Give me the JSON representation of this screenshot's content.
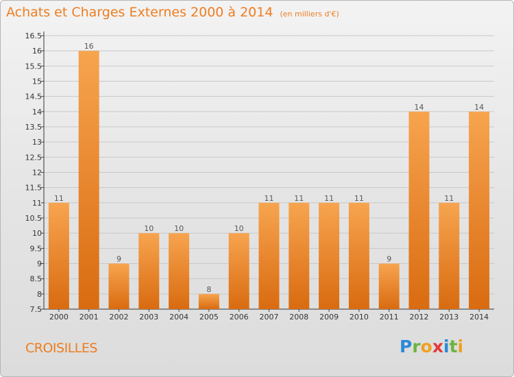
{
  "title": "Achats et Charges Externes 2000 à 2014",
  "unit": "(en milliers d'€)",
  "commune": "CROISILLES",
  "logo": {
    "letters": [
      {
        "ch": "P",
        "color": "#2b8ad6"
      },
      {
        "ch": "r",
        "color": "#6db33f"
      },
      {
        "ch": "o",
        "color": "#f0a020"
      },
      {
        "ch": "x",
        "color": "#e23a3a"
      },
      {
        "ch": "i",
        "color": "#2b8ad6"
      },
      {
        "ch": "t",
        "color": "#6db33f"
      },
      {
        "ch": "i",
        "color": "#f0a020"
      }
    ]
  },
  "colors": {
    "bar_top": "#f7a44f",
    "bar_bottom": "#d96b10",
    "title": "#ee7d20",
    "grid": "#c8c8c8"
  },
  "chart_data": {
    "type": "bar",
    "title": "Achats et Charges Externes 2000 à 2014",
    "subtitle": "(en milliers d'€)",
    "categories": [
      "2000",
      "2001",
      "2002",
      "2003",
      "2004",
      "2005",
      "2006",
      "2007",
      "2008",
      "2009",
      "2010",
      "2011",
      "2012",
      "2013",
      "2014"
    ],
    "values": [
      11,
      16,
      9,
      10,
      10,
      8,
      10,
      11,
      11,
      11,
      11,
      9,
      14,
      11,
      14
    ],
    "data_labels": [
      "11",
      "16",
      "9",
      "10",
      "10",
      "8",
      "10",
      "11",
      "11",
      "11",
      "11",
      "9",
      "14",
      "11",
      "14"
    ],
    "ylim": [
      7.5,
      16.5
    ],
    "yticks": [
      7.5,
      8,
      8.5,
      9,
      9.5,
      10,
      10.5,
      11,
      11.5,
      12,
      12.5,
      13,
      13.5,
      14,
      14.5,
      15,
      15.5,
      16,
      16.5
    ],
    "ytick_labels": [
      "7.5",
      "8",
      "8.5",
      "9",
      "9.5",
      "10",
      "10.5",
      "11",
      "11.5",
      "12",
      "12.5",
      "13",
      "13.5",
      "14",
      "14.5",
      "15",
      "15.5",
      "16",
      "16.5"
    ],
    "grid": true,
    "xlabel": "",
    "ylabel": ""
  }
}
